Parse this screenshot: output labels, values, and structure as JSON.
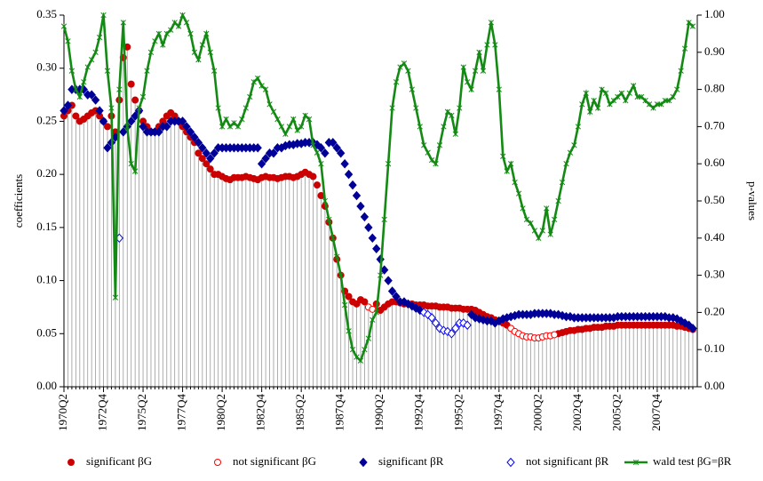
{
  "chart_data": {
    "type": "line",
    "ylabel": "coefficients",
    "y2label": "p-values",
    "categories": [
      "1970Q2",
      null,
      null,
      null,
      null,
      null,
      null,
      null,
      null,
      null,
      "1972Q4",
      null,
      null,
      null,
      null,
      null,
      null,
      null,
      null,
      null,
      "1975Q2",
      null,
      null,
      null,
      null,
      null,
      null,
      null,
      null,
      null,
      "1977Q4",
      null,
      null,
      null,
      null,
      null,
      null,
      null,
      null,
      null,
      "1980Q2",
      null,
      null,
      null,
      null,
      null,
      null,
      null,
      null,
      null,
      "1982Q4",
      null,
      null,
      null,
      null,
      null,
      null,
      null,
      null,
      null,
      "1985Q2",
      null,
      null,
      null,
      null,
      null,
      null,
      null,
      null,
      null,
      "1987Q4",
      null,
      null,
      null,
      null,
      null,
      null,
      null,
      null,
      null,
      "1990Q2",
      null,
      null,
      null,
      null,
      null,
      null,
      null,
      null,
      null,
      "1992Q4",
      null,
      null,
      null,
      null,
      null,
      null,
      null,
      null,
      null,
      "1995Q2",
      null,
      null,
      null,
      null,
      null,
      null,
      null,
      null,
      null,
      "1997Q4",
      null,
      null,
      null,
      null,
      null,
      null,
      null,
      null,
      null,
      "2000Q2",
      null,
      null,
      null,
      null,
      null,
      null,
      null,
      null,
      null,
      "2002Q4",
      null,
      null,
      null,
      null,
      null,
      null,
      null,
      null,
      null,
      "2005Q2",
      null,
      null,
      null,
      null,
      null,
      null,
      null,
      null,
      null,
      "2007Q4",
      null,
      null,
      null,
      null,
      null,
      null,
      null,
      null,
      null
    ],
    "ylim": [
      0,
      0.35
    ],
    "yticks": [
      {
        "value": 0,
        "label": "0.00"
      },
      {
        "value": 0.05,
        "label": "0.05"
      },
      {
        "value": 0.1,
        "label": "0.10"
      },
      {
        "value": 0.15,
        "label": "0.15"
      },
      {
        "value": 0.2,
        "label": "0.20"
      },
      {
        "value": 0.25,
        "label": "0.25"
      },
      {
        "value": 0.3,
        "label": "0.30"
      },
      {
        "value": 0.35,
        "label": "0.35"
      }
    ],
    "y2lim": [
      0,
      1
    ],
    "y2ticks": [
      {
        "value": 0,
        "label": "0.00"
      },
      {
        "value": 0.1,
        "label": "0.10"
      },
      {
        "value": 0.2,
        "label": "0.20"
      },
      {
        "value": 0.3,
        "label": "0.30"
      },
      {
        "value": 0.4,
        "label": "0.40"
      },
      {
        "value": 0.5,
        "label": "0.50"
      },
      {
        "value": 0.6,
        "label": "0.60"
      },
      {
        "value": 0.7,
        "label": "0.70"
      },
      {
        "value": 0.8,
        "label": "0.80"
      },
      {
        "value": 0.9,
        "label": "0.90"
      },
      {
        "value": 1,
        "label": "1.00"
      }
    ],
    "droplines": true,
    "series": [
      {
        "name": "significant βG",
        "color": "#cc0000",
        "marker": "circle",
        "filled": true,
        "values": [
          0.255,
          0.26,
          0.265,
          0.255,
          0.25,
          0.252,
          0.255,
          0.258,
          0.26,
          0.255,
          0.25,
          0.245,
          0.255,
          0.24,
          0.27,
          0.31,
          0.32,
          0.285,
          0.27,
          0.26,
          0.25,
          0.245,
          0.24,
          0.24,
          0.245,
          0.25,
          0.255,
          0.258,
          0.255,
          0.25,
          0.245,
          0.24,
          0.235,
          0.23,
          0.22,
          0.215,
          0.21,
          0.205,
          0.2,
          0.2,
          0.198,
          0.196,
          0.195,
          0.197,
          0.197,
          0.197,
          0.198,
          0.197,
          0.196,
          0.195,
          0.197,
          0.198,
          0.197,
          0.197,
          0.196,
          0.197,
          0.198,
          0.198,
          0.197,
          0.198,
          0.2,
          0.202,
          0.2,
          0.198,
          0.19,
          0.18,
          0.17,
          0.155,
          0.14,
          0.12,
          0.105,
          0.09,
          0.085,
          0.08,
          0.078,
          0.082,
          0.08,
          null,
          null,
          0.078,
          0.072,
          0.075,
          0.078,
          0.08,
          0.08,
          0.079,
          0.078,
          0.078,
          0.078,
          0.077,
          0.077,
          0.077,
          0.076,
          0.076,
          0.076,
          0.075,
          0.075,
          0.075,
          0.074,
          0.074,
          0.074,
          0.073,
          0.073,
          0.073,
          0.072,
          0.07,
          0.068,
          0.066,
          0.065,
          0.063,
          0.062,
          0.06,
          0.058,
          null,
          null,
          null,
          null,
          null,
          null,
          null,
          null,
          null,
          null,
          null,
          null,
          0.05,
          0.051,
          0.052,
          0.053,
          0.053,
          0.054,
          0.054,
          0.055,
          0.055,
          0.056,
          0.056,
          0.056,
          0.057,
          0.057,
          0.057,
          0.058,
          0.058,
          0.058,
          0.058,
          0.058,
          0.058,
          0.058,
          0.058,
          0.058,
          0.058,
          0.058,
          0.058,
          0.058,
          0.058,
          0.058,
          0.057,
          0.057,
          0.056,
          0.055,
          0.054
        ]
      },
      {
        "name": "not significant βG",
        "color": "#ff0000",
        "marker": "circle",
        "filled": false,
        "values": [
          null,
          null,
          null,
          null,
          null,
          null,
          null,
          null,
          null,
          null,
          null,
          null,
          null,
          null,
          null,
          null,
          null,
          null,
          null,
          null,
          null,
          null,
          null,
          null,
          null,
          null,
          null,
          null,
          null,
          null,
          null,
          null,
          null,
          null,
          null,
          null,
          null,
          null,
          null,
          null,
          null,
          null,
          null,
          null,
          null,
          null,
          null,
          null,
          null,
          null,
          null,
          null,
          null,
          null,
          null,
          null,
          null,
          null,
          null,
          null,
          null,
          null,
          null,
          null,
          null,
          null,
          null,
          null,
          null,
          null,
          null,
          null,
          null,
          null,
          null,
          null,
          null,
          0.075,
          0.073,
          null,
          null,
          null,
          null,
          null,
          null,
          null,
          null,
          null,
          null,
          null,
          null,
          null,
          null,
          null,
          null,
          null,
          null,
          null,
          null,
          null,
          null,
          null,
          null,
          null,
          null,
          null,
          null,
          null,
          null,
          null,
          null,
          null,
          null,
          0.055,
          0.052,
          0.05,
          0.048,
          0.047,
          0.047,
          0.046,
          0.046,
          0.047,
          0.048,
          0.048,
          0.049,
          null,
          null,
          null,
          null,
          null,
          null,
          null,
          null,
          null,
          null,
          null,
          null,
          null,
          null,
          null,
          null,
          null,
          null,
          null,
          null,
          null,
          null,
          null,
          null,
          null,
          null,
          null,
          null,
          null,
          null,
          null,
          null,
          null,
          null,
          null
        ]
      },
      {
        "name": "significant βR",
        "color": "#000099",
        "marker": "diamond",
        "filled": true,
        "values": [
          0.26,
          0.265,
          0.28,
          0.28,
          0.28,
          0.28,
          0.275,
          0.275,
          0.27,
          0.26,
          0.25,
          0.225,
          0.23,
          0.235,
          null,
          0.24,
          0.245,
          0.25,
          0.255,
          0.26,
          0.245,
          0.24,
          0.24,
          0.24,
          0.24,
          0.245,
          0.245,
          0.25,
          0.25,
          0.25,
          0.25,
          0.245,
          0.24,
          0.235,
          0.23,
          0.225,
          0.22,
          0.215,
          0.22,
          0.225,
          0.225,
          0.225,
          0.225,
          0.225,
          0.225,
          0.225,
          0.225,
          0.225,
          0.225,
          0.225,
          0.21,
          0.215,
          0.22,
          0.22,
          0.225,
          0.225,
          0.227,
          0.228,
          0.228,
          0.229,
          0.229,
          0.23,
          0.23,
          0.23,
          0.228,
          0.225,
          0.22,
          0.23,
          0.23,
          0.225,
          0.22,
          0.21,
          0.2,
          0.19,
          0.18,
          0.17,
          0.16,
          0.15,
          0.14,
          0.13,
          0.12,
          0.11,
          0.1,
          0.09,
          0.085,
          0.08,
          0.08,
          0.078,
          0.076,
          0.074,
          0.072,
          null,
          null,
          null,
          null,
          null,
          null,
          null,
          null,
          null,
          null,
          null,
          null,
          0.068,
          0.065,
          0.064,
          0.063,
          0.062,
          0.062,
          0.06,
          0.062,
          0.064,
          0.065,
          0.066,
          0.067,
          0.068,
          0.068,
          0.068,
          0.068,
          0.069,
          0.069,
          0.069,
          0.069,
          0.069,
          0.068,
          0.068,
          0.067,
          0.066,
          0.066,
          0.065,
          0.065,
          0.065,
          0.065,
          0.065,
          0.065,
          0.065,
          0.065,
          0.065,
          0.065,
          0.065,
          0.066,
          0.066,
          0.066,
          0.066,
          0.066,
          0.066,
          0.066,
          0.066,
          0.066,
          0.066,
          0.066,
          0.066,
          0.066,
          0.065,
          0.065,
          0.064,
          0.062,
          0.06,
          0.058,
          0.055
        ]
      },
      {
        "name": "not significant βR",
        "color": "#0000ff",
        "marker": "diamond",
        "filled": false,
        "values": [
          null,
          null,
          null,
          null,
          null,
          null,
          null,
          null,
          null,
          null,
          null,
          null,
          null,
          null,
          0.14,
          null,
          null,
          null,
          null,
          null,
          null,
          null,
          null,
          null,
          null,
          null,
          null,
          null,
          null,
          null,
          null,
          null,
          null,
          null,
          null,
          null,
          null,
          null,
          null,
          null,
          null,
          null,
          null,
          null,
          null,
          null,
          null,
          null,
          null,
          null,
          null,
          null,
          null,
          null,
          null,
          null,
          null,
          null,
          null,
          null,
          null,
          null,
          null,
          null,
          null,
          null,
          null,
          null,
          null,
          null,
          null,
          null,
          null,
          null,
          null,
          null,
          null,
          null,
          null,
          null,
          null,
          null,
          null,
          null,
          null,
          null,
          null,
          null,
          null,
          null,
          null,
          0.07,
          0.068,
          0.065,
          0.06,
          0.055,
          0.053,
          0.052,
          0.05,
          0.055,
          0.06,
          0.06,
          0.058,
          null,
          null,
          null,
          null,
          null,
          null,
          null,
          null,
          null,
          null,
          null,
          null,
          null,
          null,
          null,
          null,
          null,
          null,
          null,
          null,
          null,
          null,
          null,
          null,
          null,
          null,
          null,
          null,
          null,
          null,
          null,
          null,
          null,
          null,
          null,
          null,
          null,
          null,
          null,
          null,
          null,
          null,
          null,
          null,
          null,
          null,
          null,
          null,
          null,
          null,
          null,
          null,
          null,
          null,
          null,
          null,
          null
        ]
      },
      {
        "name": "wald test βG=βR",
        "color": "#138a13",
        "marker": "star",
        "filled": true,
        "axis": "y2",
        "values": [
          0.97,
          0.93,
          0.85,
          0.8,
          0.78,
          0.82,
          0.86,
          0.88,
          0.9,
          0.94,
          1.0,
          0.85,
          0.75,
          0.24,
          0.8,
          0.98,
          0.7,
          0.6,
          0.58,
          0.75,
          0.78,
          0.85,
          0.9,
          0.93,
          0.95,
          0.92,
          0.95,
          0.96,
          0.98,
          0.97,
          1.0,
          0.98,
          0.95,
          0.9,
          0.88,
          0.92,
          0.95,
          0.9,
          0.85,
          0.75,
          0.7,
          0.72,
          0.7,
          0.71,
          0.7,
          0.72,
          0.75,
          0.78,
          0.82,
          0.83,
          0.81,
          0.8,
          0.76,
          0.74,
          0.72,
          0.7,
          0.68,
          0.7,
          0.72,
          0.69,
          0.7,
          0.73,
          0.72,
          0.65,
          0.63,
          0.6,
          0.5,
          0.45,
          0.4,
          0.35,
          0.3,
          0.22,
          0.15,
          0.1,
          0.08,
          0.07,
          0.1,
          0.13,
          0.18,
          0.2,
          0.3,
          0.45,
          0.6,
          0.75,
          0.82,
          0.86,
          0.87,
          0.85,
          0.8,
          0.75,
          0.7,
          0.65,
          0.63,
          0.61,
          0.6,
          0.65,
          0.7,
          0.74,
          0.73,
          0.68,
          0.75,
          0.86,
          0.82,
          0.8,
          0.85,
          0.9,
          0.85,
          0.92,
          0.98,
          0.92,
          0.8,
          0.62,
          0.58,
          0.6,
          0.55,
          0.52,
          0.48,
          0.45,
          0.44,
          0.42,
          0.4,
          0.42,
          0.48,
          0.41,
          0.45,
          0.5,
          0.55,
          0.6,
          0.63,
          0.65,
          0.7,
          0.76,
          0.79,
          0.74,
          0.77,
          0.75,
          0.8,
          0.79,
          0.76,
          0.77,
          0.78,
          0.79,
          0.77,
          0.79,
          0.81,
          0.78,
          0.78,
          0.77,
          0.76,
          0.75,
          0.76,
          0.76,
          0.77,
          0.77,
          0.78,
          0.8,
          0.85,
          0.91,
          0.98,
          0.97
        ]
      }
    ]
  }
}
